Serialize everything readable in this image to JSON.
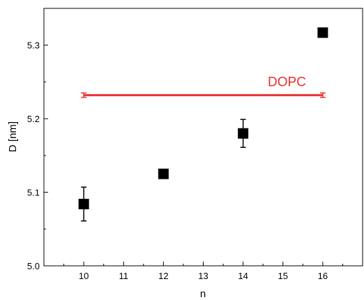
{
  "chart_data": {
    "type": "scatter",
    "xlabel": "n",
    "ylabel": "D [nm]",
    "xlim": [
      9,
      17
    ],
    "ylim": [
      5.0,
      5.35
    ],
    "x_ticks": [
      10,
      11,
      12,
      13,
      14,
      15,
      16
    ],
    "x_tick_labels": [
      "10",
      "11",
      "12",
      "13",
      "14",
      "15",
      "16"
    ],
    "y_ticks": [
      5.0,
      5.1,
      5.2,
      5.3
    ],
    "y_tick_labels": [
      "5.0",
      "5.1",
      "5.2",
      "5.3"
    ],
    "grid": false,
    "legend": "none",
    "series": [
      {
        "marker": "square",
        "color": "#000000",
        "points": [
          {
            "x": 10,
            "y": 5.084,
            "err": 0.023
          },
          {
            "x": 12,
            "y": 5.125,
            "err": 0
          },
          {
            "x": 14,
            "y": 5.18,
            "err": 0.019
          },
          {
            "x": 16,
            "y": 5.317,
            "err": 0
          }
        ]
      }
    ],
    "reference_line": {
      "label": "DOPC",
      "color": "#e8302f",
      "x_start": 10,
      "x_end": 16,
      "y": 5.232,
      "err": 0.003
    }
  }
}
